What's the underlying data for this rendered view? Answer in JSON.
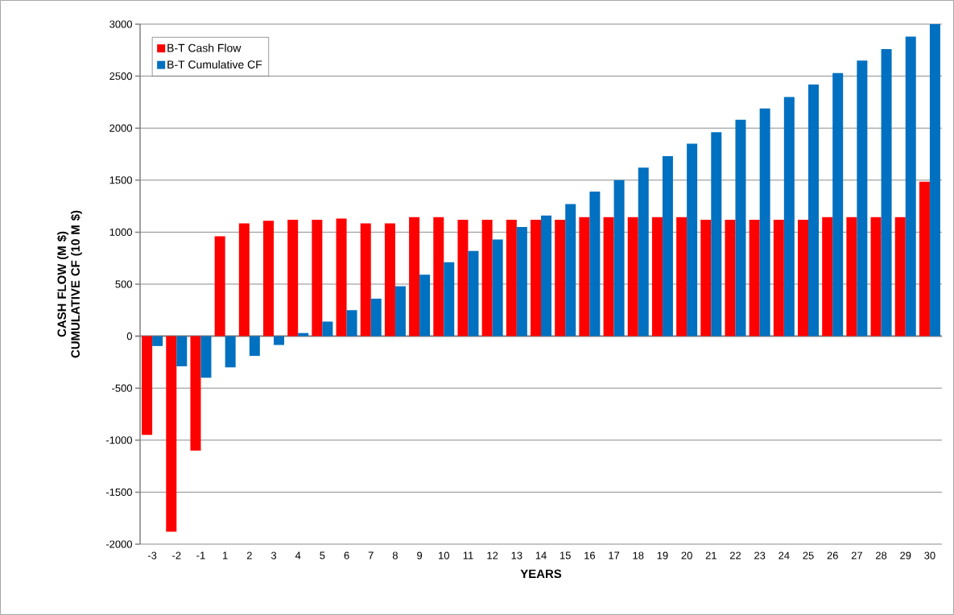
{
  "chart_data": {
    "type": "bar",
    "xlabel": "YEARS",
    "ylabel": "CASH  FLOW (M $) CUMULATIVE CF (10 M $)",
    "categories": [
      "-3",
      "-2",
      "-1",
      "1",
      "2",
      "3",
      "4",
      "5",
      "6",
      "7",
      "8",
      "9",
      "10",
      "11",
      "12",
      "13",
      "14",
      "15",
      "16",
      "17",
      "18",
      "19",
      "20",
      "21",
      "22",
      "23",
      "24",
      "25",
      "26",
      "27",
      "28",
      "29",
      "30"
    ],
    "series": [
      {
        "name": "B-T Cash Flow",
        "color": "#ff0000",
        "values": [
          -950,
          -1880,
          -1100,
          960,
          1085,
          1110,
          1120,
          1120,
          1130,
          1085,
          1085,
          1145,
          1145,
          1120,
          1120,
          1120,
          1120,
          1120,
          1145,
          1145,
          1145,
          1145,
          1145,
          1120,
          1120,
          1120,
          1120,
          1120,
          1145,
          1145,
          1145,
          1145,
          1485
        ]
      },
      {
        "name": "B-T Cumulative CF",
        "color": "#0070c0",
        "values": [
          -95,
          -290,
          -400,
          -300,
          -190,
          -85,
          30,
          140,
          250,
          360,
          480,
          590,
          710,
          820,
          930,
          1050,
          1160,
          1270,
          1390,
          1500,
          1620,
          1730,
          1850,
          1960,
          2080,
          2190,
          2300,
          2420,
          2530,
          2650,
          2760,
          2880,
          3000
        ]
      }
    ],
    "ylim": [
      -2000,
      3000
    ],
    "yticks": [
      -2000,
      -1500,
      -1000,
      -500,
      0,
      500,
      1000,
      1500,
      2000,
      2500,
      3000
    ],
    "grid": "y",
    "legend": "top left"
  }
}
